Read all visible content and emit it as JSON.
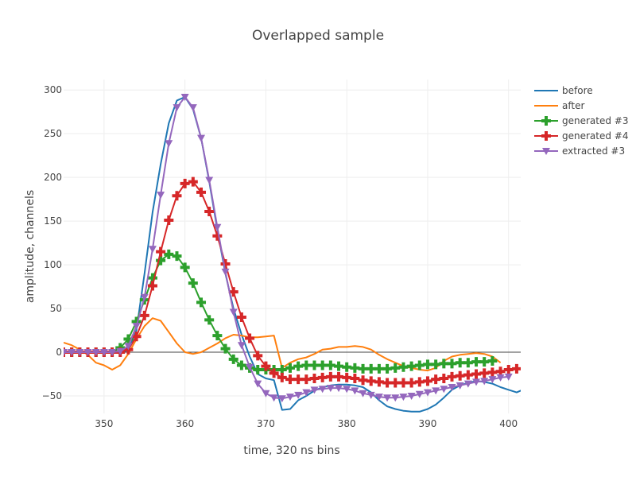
{
  "chart_data": {
    "type": "line",
    "title": "Overlapped sample",
    "xlabel": "time, 320 ns bins",
    "ylabel": "amplitude, channels",
    "xlim": [
      345,
      401.5
    ],
    "ylim": [
      -70,
      312
    ],
    "xticks": [
      350,
      360,
      370,
      380,
      390,
      400
    ],
    "yticks": [
      -50,
      0,
      50,
      100,
      150,
      200,
      250,
      300
    ],
    "grid": true,
    "zero_line": true,
    "legend_position": "top-right",
    "series": [
      {
        "name": "before",
        "color": "#1f77b4",
        "marker": "none",
        "x": [
          345,
          346,
          347,
          348,
          349,
          350,
          351,
          352,
          353,
          354,
          355,
          356,
          357,
          358,
          359,
          360,
          361,
          362,
          363,
          364,
          365,
          366,
          367,
          368,
          369,
          370,
          371,
          372,
          373,
          374,
          375,
          376,
          377,
          378,
          379,
          380,
          381,
          382,
          383,
          384,
          385,
          386,
          387,
          388,
          389,
          390,
          391,
          392,
          393,
          394,
          395,
          396,
          397,
          398,
          399,
          400,
          401,
          402
        ],
        "y": [
          0,
          0,
          0,
          0,
          0,
          0,
          0,
          0,
          2,
          25,
          90,
          160,
          215,
          262,
          288,
          292,
          278,
          245,
          195,
          140,
          90,
          50,
          20,
          -5,
          -25,
          -30,
          -32,
          -66,
          -65,
          -55,
          -50,
          -44,
          -40,
          -38,
          -37,
          -37,
          -38,
          -40,
          -46,
          -55,
          -62,
          -65,
          -67,
          -68,
          -68,
          -65,
          -60,
          -52,
          -43,
          -38,
          -35,
          -33,
          -34,
          -36,
          -40,
          -43,
          -46,
          -42
        ]
      },
      {
        "name": "after",
        "color": "#ff7f0e",
        "marker": "none",
        "x": [
          345,
          346,
          347,
          348,
          349,
          350,
          351,
          352,
          353,
          354,
          355,
          356,
          357,
          358,
          359,
          360,
          361,
          362,
          363,
          364,
          365,
          366,
          367,
          368,
          369,
          370,
          371,
          372,
          373,
          374,
          375,
          376,
          377,
          378,
          379,
          380,
          381,
          382,
          383,
          384,
          385,
          386,
          387,
          388,
          389,
          390,
          391,
          392,
          393,
          394,
          395,
          396,
          397,
          398,
          399
        ],
        "y": [
          11,
          8,
          3,
          -3,
          -12,
          -15,
          -20,
          -15,
          -2,
          15,
          30,
          39,
          36,
          23,
          10,
          0,
          -2,
          0,
          5,
          10,
          16,
          20,
          19,
          17,
          17,
          18,
          19,
          -18,
          -12,
          -8,
          -6,
          -2,
          3,
          4,
          6,
          6,
          7,
          6,
          3,
          -3,
          -8,
          -12,
          -16,
          -18,
          -20,
          -21,
          -18,
          -10,
          -5,
          -3,
          -2,
          -1,
          -2,
          -5,
          -12
        ]
      },
      {
        "name": "generated #3",
        "color": "#2ca02c",
        "marker": "plus",
        "x": [
          345,
          346,
          347,
          348,
          349,
          350,
          351,
          352,
          353,
          354,
          355,
          356,
          357,
          358,
          359,
          360,
          361,
          362,
          363,
          364,
          365,
          366,
          367,
          368,
          369,
          370,
          371,
          372,
          373,
          374,
          375,
          376,
          377,
          378,
          379,
          380,
          381,
          382,
          383,
          384,
          385,
          386,
          387,
          388,
          389,
          390,
          391,
          392,
          393,
          394,
          395,
          396,
          397,
          398
        ],
        "y": [
          0,
          0,
          0,
          0,
          0,
          0,
          0,
          5,
          15,
          35,
          60,
          85,
          105,
          112,
          110,
          97,
          79,
          57,
          37,
          19,
          4,
          -8,
          -15,
          -18,
          -20,
          -20,
          -20,
          -20,
          -18,
          -16,
          -15,
          -15,
          -15,
          -15,
          -16,
          -17,
          -18,
          -19,
          -19,
          -19,
          -19,
          -18,
          -17,
          -16,
          -15,
          -14,
          -14,
          -13,
          -13,
          -12,
          -12,
          -11,
          -11,
          -10
        ]
      },
      {
        "name": "generated #4",
        "color": "#d62728",
        "marker": "plus",
        "x": [
          345,
          346,
          347,
          348,
          349,
          350,
          351,
          352,
          353,
          354,
          355,
          356,
          357,
          358,
          359,
          360,
          361,
          362,
          363,
          364,
          365,
          366,
          367,
          368,
          369,
          370,
          371,
          372,
          373,
          374,
          375,
          376,
          377,
          378,
          379,
          380,
          381,
          382,
          383,
          384,
          385,
          386,
          387,
          388,
          389,
          390,
          391,
          392,
          393,
          394,
          395,
          396,
          397,
          398,
          399,
          400,
          401
        ],
        "y": [
          0,
          0,
          0,
          0,
          0,
          0,
          0,
          0,
          3,
          18,
          42,
          76,
          115,
          151,
          179,
          193,
          195,
          183,
          161,
          133,
          101,
          69,
          40,
          16,
          -4,
          -16,
          -24,
          -29,
          -31,
          -31,
          -31,
          -30,
          -29,
          -28,
          -28,
          -29,
          -30,
          -32,
          -33,
          -34,
          -35,
          -35,
          -35,
          -35,
          -34,
          -33,
          -31,
          -30,
          -28,
          -27,
          -26,
          -25,
          -24,
          -23,
          -22,
          -20,
          -19
        ]
      },
      {
        "name": "extracted #3",
        "color": "#9467bd",
        "marker": "triangle-down",
        "x": [
          345,
          346,
          347,
          348,
          349,
          350,
          351,
          352,
          353,
          354,
          355,
          356,
          357,
          358,
          359,
          360,
          361,
          362,
          363,
          364,
          365,
          366,
          367,
          368,
          369,
          370,
          371,
          372,
          373,
          374,
          375,
          376,
          377,
          378,
          379,
          380,
          381,
          382,
          383,
          384,
          385,
          386,
          387,
          388,
          389,
          390,
          391,
          392,
          393,
          394,
          395,
          396,
          397,
          398,
          399,
          400
        ],
        "y": [
          0,
          0,
          0,
          0,
          0,
          0,
          0,
          1,
          7,
          30,
          63,
          118,
          180,
          239,
          280,
          292,
          280,
          245,
          197,
          143,
          92,
          46,
          8,
          -17,
          -36,
          -47,
          -52,
          -53,
          -51,
          -49,
          -46,
          -43,
          -42,
          -41,
          -41,
          -42,
          -44,
          -47,
          -49,
          -51,
          -52,
          -52,
          -51,
          -50,
          -48,
          -46,
          -44,
          -42,
          -40,
          -38,
          -36,
          -34,
          -33,
          -31,
          -29,
          -28
        ]
      }
    ]
  }
}
